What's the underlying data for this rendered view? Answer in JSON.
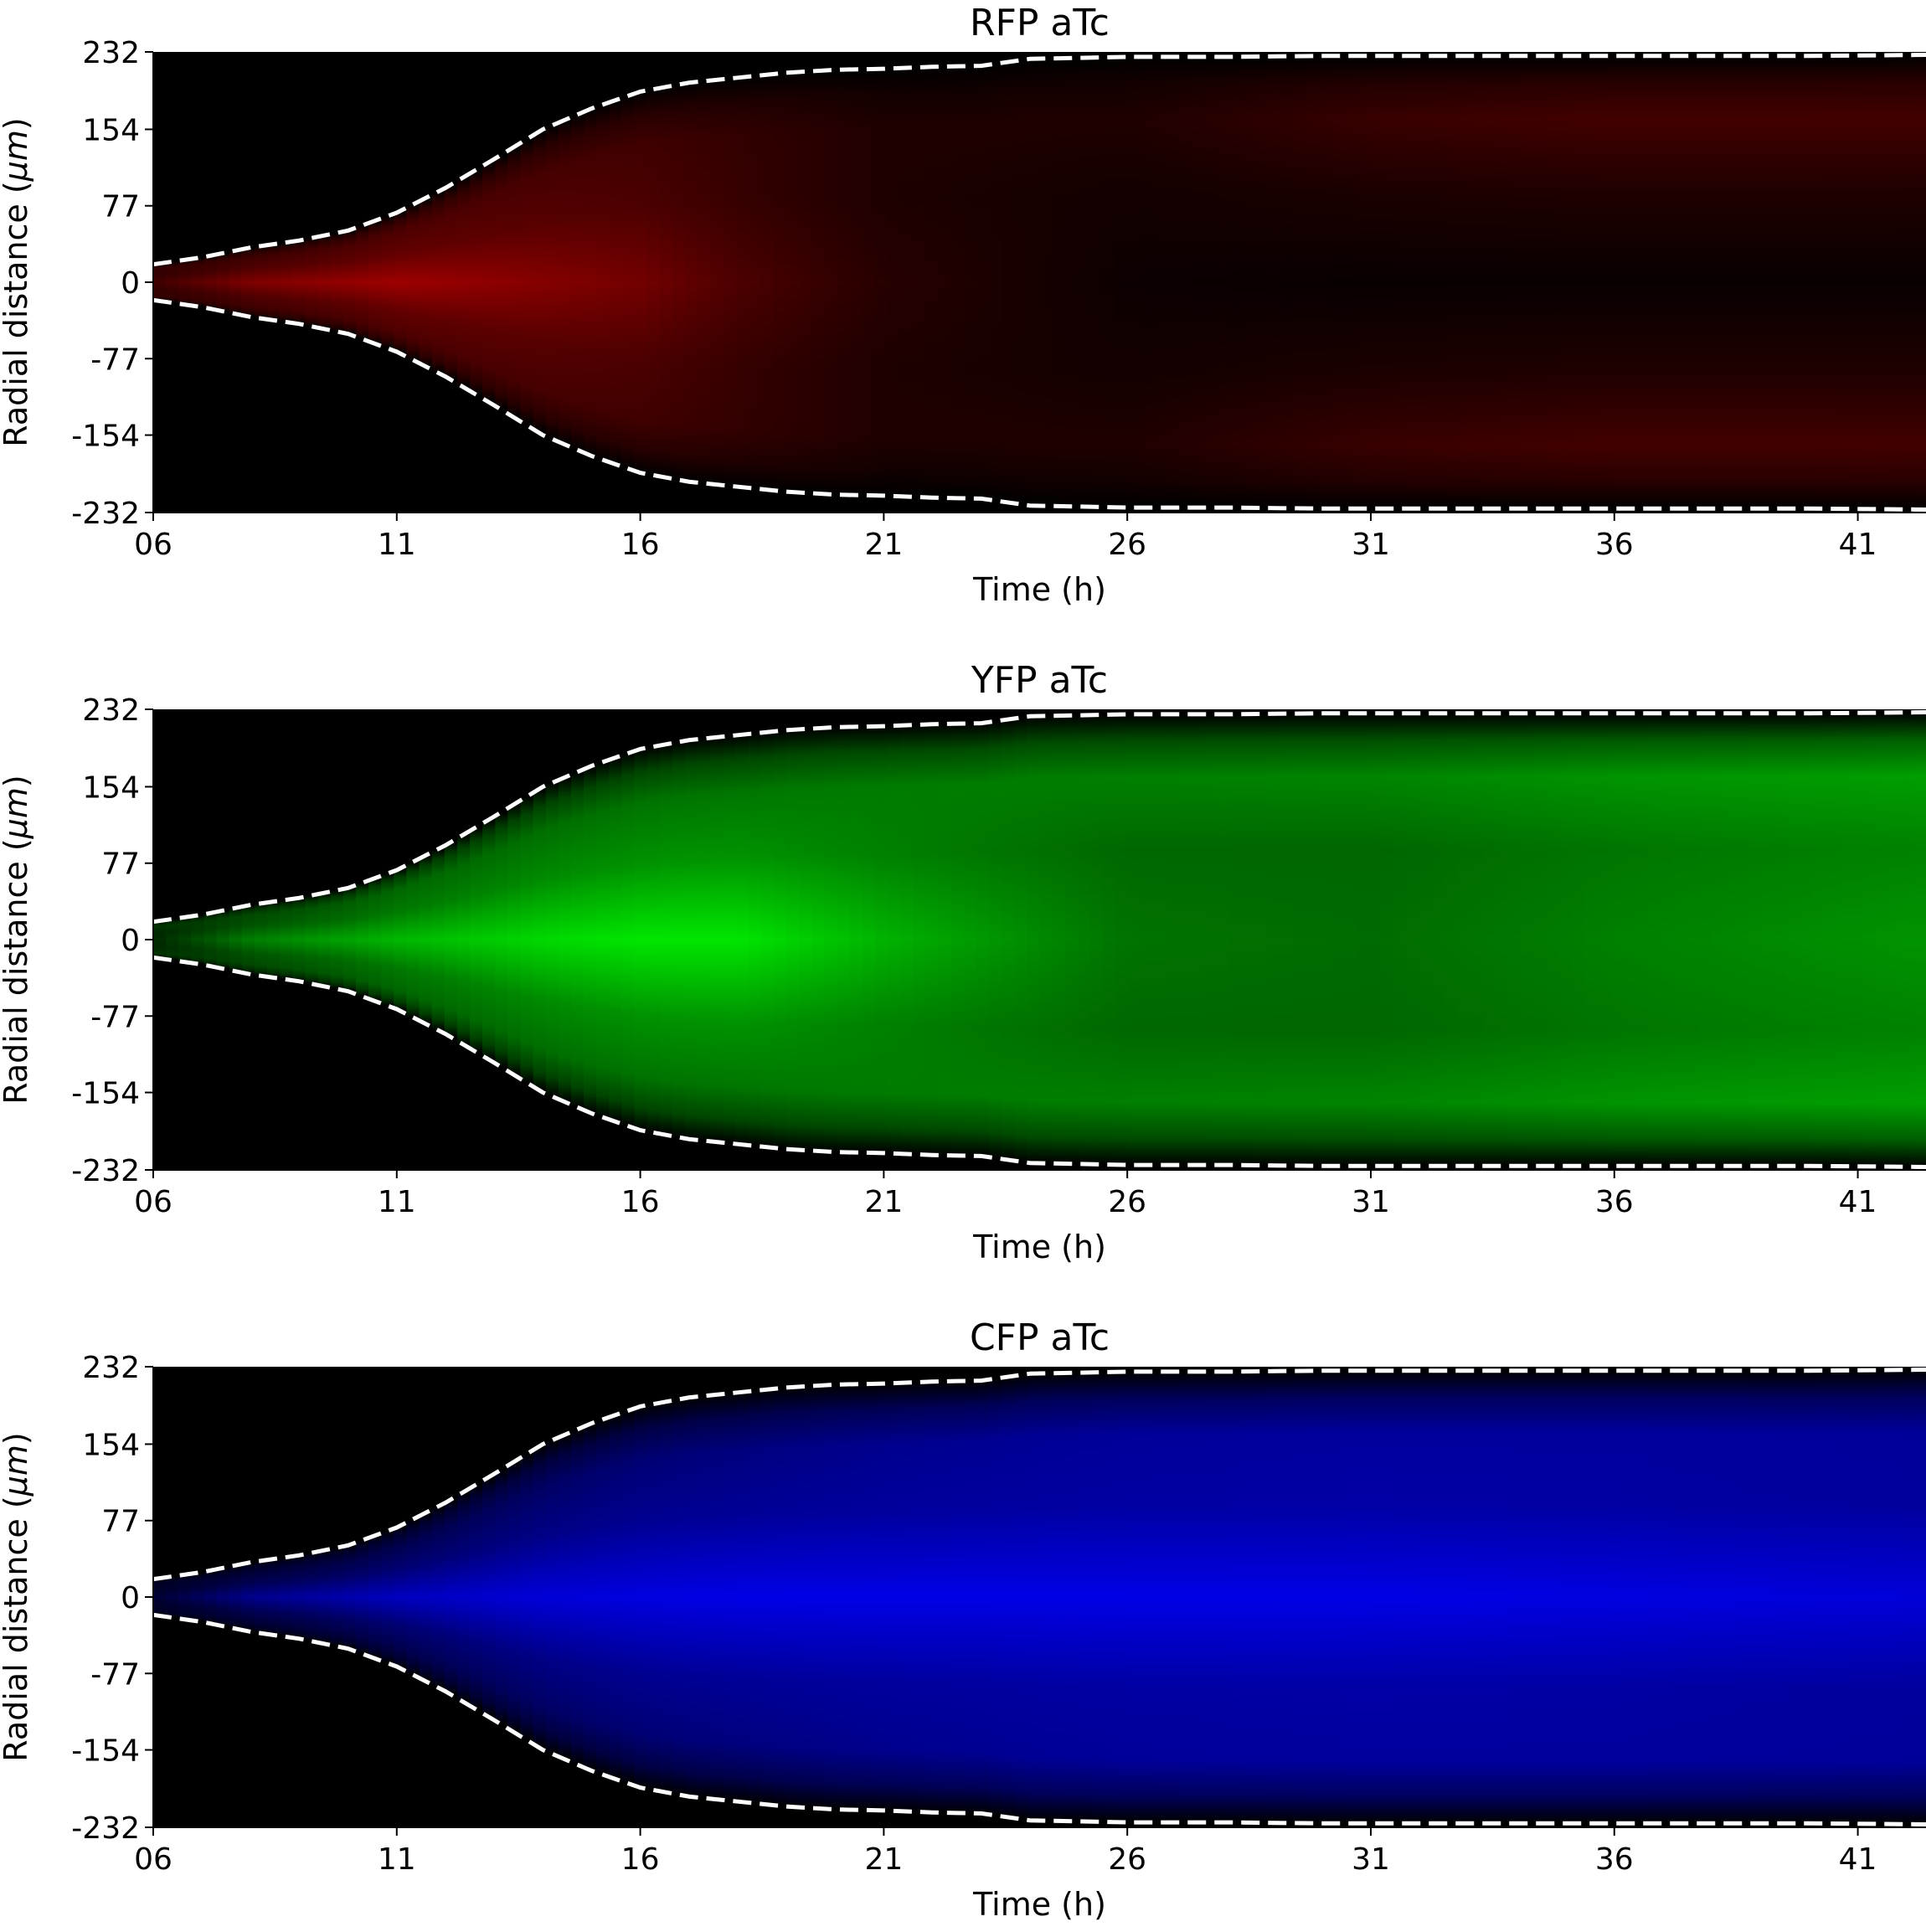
{
  "chart_data": [
    {
      "type": "heatmap",
      "title": "RFP aTc",
      "xlabel": "Time (h)",
      "ylabel_text": "Radial distance (",
      "ylabel_unit": "μm",
      "ylabel_close": ")",
      "x_ticks": [
        "06",
        "11",
        "16",
        "21",
        "26",
        "31",
        "36",
        "41"
      ],
      "y_ticks": [
        "232",
        "154",
        "77",
        "0",
        "-77",
        "-154",
        "-232"
      ],
      "xlim": [
        6,
        42.4
      ],
      "ylim": [
        -232,
        232
      ],
      "color": "#ff0000",
      "boundary_style": "white dashed",
      "boundary_time": [
        6,
        7,
        8,
        9,
        10,
        11,
        12,
        13,
        14,
        15,
        16,
        17,
        18,
        19,
        20,
        21,
        22,
        23,
        24,
        25,
        26,
        28,
        30,
        32,
        34,
        36,
        38,
        40,
        42.4
      ],
      "boundary_radius": [
        18,
        25,
        35,
        42,
        52,
        70,
        95,
        124,
        154,
        175,
        192,
        201,
        206,
        211,
        214,
        215,
        217,
        218,
        225,
        226,
        227,
        227,
        228,
        228,
        228,
        228,
        228,
        228,
        229
      ],
      "intensity_pattern": "bright near center at early times (peak ~0.62 near 11 h), fading to a dim rim band near the colony edge at late times",
      "center_intensity_time": [
        6,
        8,
        11,
        14,
        16,
        18,
        21,
        26,
        31,
        36,
        42.4
      ],
      "center_intensity": [
        0.25,
        0.5,
        0.62,
        0.52,
        0.45,
        0.3,
        0.15,
        0.05,
        0.03,
        0.03,
        0.03
      ],
      "edge_intensity_time": [
        6,
        11,
        16,
        21,
        26,
        31,
        36,
        42.4
      ],
      "edge_intensity": [
        0.2,
        0.3,
        0.25,
        0.12,
        0.12,
        0.22,
        0.26,
        0.26
      ]
    },
    {
      "type": "heatmap",
      "title": "YFP aTc",
      "xlabel": "Time (h)",
      "ylabel_text": "Radial distance (",
      "ylabel_unit": "μm",
      "ylabel_close": ")",
      "x_ticks": [
        "06",
        "11",
        "16",
        "21",
        "26",
        "31",
        "36",
        "41"
      ],
      "y_ticks": [
        "232",
        "154",
        "77",
        "0",
        "-77",
        "-154",
        "-232"
      ],
      "xlim": [
        6,
        42.4
      ],
      "ylim": [
        -232,
        232
      ],
      "color": "#00ff00",
      "boundary_style": "white dashed",
      "boundary_time": [
        6,
        7,
        8,
        9,
        10,
        11,
        12,
        13,
        14,
        15,
        16,
        17,
        18,
        19,
        20,
        21,
        22,
        23,
        24,
        25,
        26,
        28,
        30,
        32,
        34,
        36,
        38,
        40,
        42.4
      ],
      "boundary_radius": [
        18,
        25,
        35,
        42,
        52,
        70,
        95,
        124,
        154,
        175,
        192,
        201,
        206,
        211,
        214,
        215,
        217,
        218,
        225,
        226,
        227,
        227,
        228,
        228,
        228,
        228,
        228,
        228,
        229
      ],
      "intensity_pattern": "bright green core peaking around 16-20 h, dimming at center later with a brighter rim band near the edge",
      "center_intensity_time": [
        6,
        8,
        11,
        14,
        16,
        18,
        21,
        26,
        31,
        36,
        42.4
      ],
      "center_intensity": [
        0.15,
        0.5,
        0.72,
        0.85,
        0.9,
        0.9,
        0.7,
        0.45,
        0.42,
        0.5,
        0.58
      ],
      "edge_intensity_time": [
        6,
        11,
        16,
        21,
        26,
        31,
        36,
        42.4
      ],
      "edge_intensity": [
        0.2,
        0.4,
        0.45,
        0.48,
        0.5,
        0.52,
        0.58,
        0.62
      ]
    },
    {
      "type": "heatmap",
      "title": "CFP aTc",
      "xlabel": "Time (h)",
      "ylabel_text": "Radial distance (",
      "ylabel_unit": "μm",
      "ylabel_close": ")",
      "x_ticks": [
        "06",
        "11",
        "16",
        "21",
        "26",
        "31",
        "36",
        "41"
      ],
      "y_ticks": [
        "232",
        "154",
        "77",
        "0",
        "-77",
        "-154",
        "-232"
      ],
      "xlim": [
        6,
        42.4
      ],
      "ylim": [
        -232,
        232
      ],
      "color": "#0000ff",
      "boundary_style": "white dashed",
      "boundary_time": [
        6,
        7,
        8,
        9,
        10,
        11,
        12,
        13,
        14,
        15,
        16,
        17,
        18,
        19,
        20,
        21,
        22,
        23,
        24,
        25,
        26,
        28,
        30,
        32,
        34,
        36,
        38,
        40,
        42.4
      ],
      "boundary_radius": [
        18,
        25,
        35,
        42,
        52,
        70,
        95,
        124,
        154,
        175,
        192,
        201,
        206,
        211,
        214,
        215,
        217,
        218,
        225,
        226,
        227,
        227,
        228,
        228,
        228,
        228,
        228,
        228,
        229
      ],
      "intensity_pattern": "blue signal fills colony, brightest along the center from ~14 h onward, edges fade smoothly",
      "center_intensity_time": [
        6,
        8,
        11,
        14,
        16,
        18,
        21,
        26,
        31,
        36,
        42.4
      ],
      "center_intensity": [
        0.2,
        0.55,
        0.75,
        0.85,
        0.88,
        0.9,
        0.9,
        0.9,
        0.9,
        0.88,
        0.85
      ],
      "edge_intensity_time": [
        6,
        11,
        16,
        21,
        26,
        31,
        36,
        42.4
      ],
      "edge_intensity": [
        0.15,
        0.3,
        0.45,
        0.55,
        0.6,
        0.62,
        0.62,
        0.6
      ]
    }
  ]
}
